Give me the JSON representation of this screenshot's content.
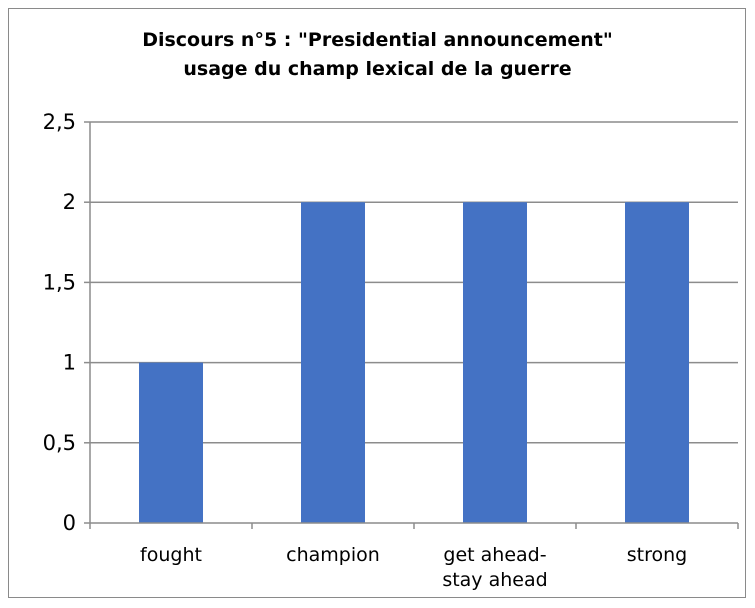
{
  "chart_data": {
    "type": "bar",
    "title": "Discours n°5 : \"Presidential announcement\"\nusage du champ lexical de la guerre",
    "xlabel": "",
    "ylabel": "",
    "categories": [
      [
        "fought"
      ],
      [
        "champion"
      ],
      [
        "get ahead-",
        "stay ahead"
      ],
      [
        "strong"
      ]
    ],
    "series": [
      {
        "values": [
          1,
          2,
          2,
          2
        ]
      }
    ],
    "ylim": [
      0,
      2.5
    ],
    "yticks": [
      "0",
      "0,5",
      "1",
      "1,5",
      "2",
      "2,5"
    ],
    "grid": true,
    "legend": "none",
    "colors": {
      "bar": "#4472C4",
      "grid": "#8c8c8c",
      "axis": "#8c8c8c",
      "frame": "#8a8a8a"
    }
  }
}
